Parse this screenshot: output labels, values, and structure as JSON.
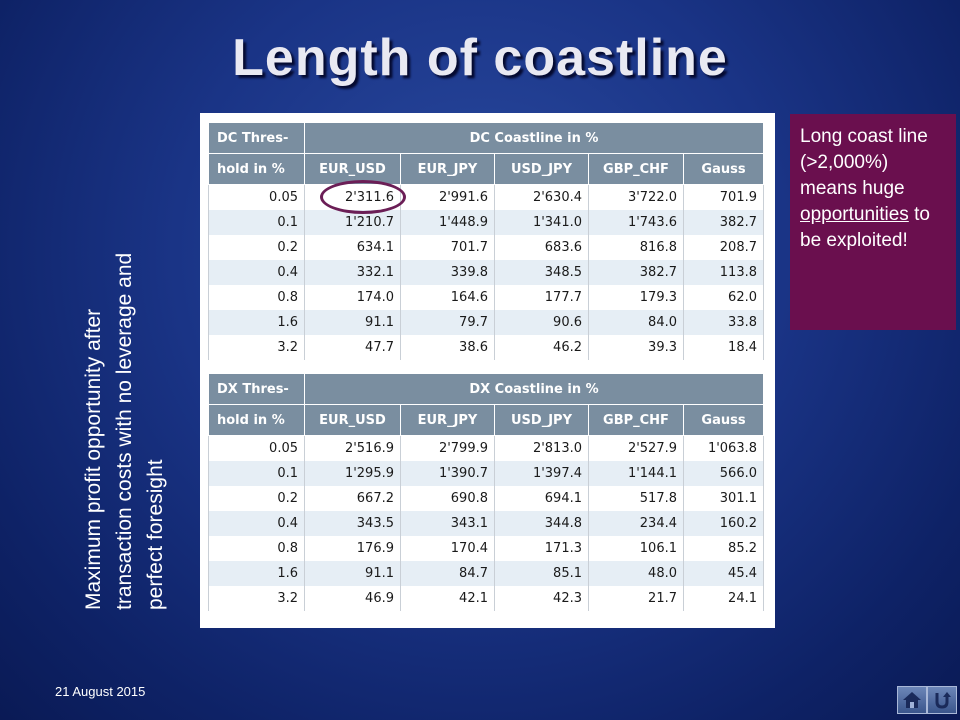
{
  "title": "Length of coastline",
  "side_note": "Maximum profit opportunity after transaction costs with no leverage and perfect foresight",
  "dc_table": {
    "thres_header_1": "DC Thres-",
    "thres_header_2": "hold in %",
    "group_header": "DC Coastline in %",
    "columns": [
      "EUR_USD",
      "EUR_JPY",
      "USD_JPY",
      "GBP_CHF",
      "Gauss"
    ],
    "rows": [
      [
        "0.05",
        "2'311.6",
        "2'991.6",
        "2'630.4",
        "3'722.0",
        "701.9"
      ],
      [
        "0.1",
        "1'210.7",
        "1'448.9",
        "1'341.0",
        "1'743.6",
        "382.7"
      ],
      [
        "0.2",
        "634.1",
        "701.7",
        "683.6",
        "816.8",
        "208.7"
      ],
      [
        "0.4",
        "332.1",
        "339.8",
        "348.5",
        "382.7",
        "113.8"
      ],
      [
        "0.8",
        "174.0",
        "164.6",
        "177.7",
        "179.3",
        "62.0"
      ],
      [
        "1.6",
        "91.1",
        "79.7",
        "90.6",
        "84.0",
        "33.8"
      ],
      [
        "3.2",
        "47.7",
        "38.6",
        "46.2",
        "39.3",
        "18.4"
      ]
    ]
  },
  "dx_table": {
    "thres_header_1": "DX Thres-",
    "thres_header_2": "hold in %",
    "group_header": "DX Coastline in %",
    "columns": [
      "EUR_USD",
      "EUR_JPY",
      "USD_JPY",
      "GBP_CHF",
      "Gauss"
    ],
    "rows": [
      [
        "0.05",
        "2'516.9",
        "2'799.9",
        "2'813.0",
        "2'527.9",
        "1'063.8"
      ],
      [
        "0.1",
        "1'295.9",
        "1'390.7",
        "1'397.4",
        "1'144.1",
        "566.0"
      ],
      [
        "0.2",
        "667.2",
        "690.8",
        "694.1",
        "517.8",
        "301.1"
      ],
      [
        "0.4",
        "343.5",
        "343.1",
        "344.8",
        "234.4",
        "160.2"
      ],
      [
        "0.8",
        "176.9",
        "170.4",
        "171.3",
        "106.1",
        "85.2"
      ],
      [
        "1.6",
        "91.1",
        "84.7",
        "85.1",
        "48.0",
        "45.4"
      ],
      [
        "3.2",
        "46.9",
        "42.1",
        "42.3",
        "21.7",
        "24.1"
      ]
    ]
  },
  "callout": {
    "line1": "Long coast line (>2,000%) means huge",
    "underlined": "opportunities",
    "line2": "to be exploited!"
  },
  "footer": {
    "date": "21 August 2015"
  },
  "nav": {
    "home_icon": "home-icon",
    "back_icon": "return-arrow-icon"
  },
  "colors": {
    "header_bg": "#7a8ea0",
    "stripe": "#e6eef5",
    "callout_bg": "#6a0f4e",
    "circle": "#6b1e56"
  }
}
